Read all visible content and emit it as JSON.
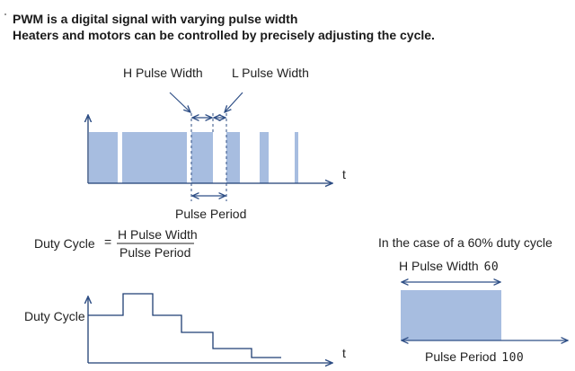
{
  "header": {
    "line1": "PWM is a digital signal with varying pulse width",
    "line2": "Heaters and motors can be controlled by precisely adjusting the cycle."
  },
  "pwm_diagram": {
    "h_label": "H Pulse Width",
    "l_label": "L Pulse Width",
    "period_label": "Pulse Period",
    "t_label": "t"
  },
  "formula": {
    "lhs": "Duty Cycle",
    "eq": "=",
    "numerator": "H Pulse Width",
    "denominator": "Pulse Period"
  },
  "example": {
    "title": "In the case of a 60% duty cycle",
    "h_label": "H Pulse Width",
    "h_value": "60",
    "period_label": "Pulse Period",
    "period_value": "100"
  },
  "duty_graph": {
    "ylabel": "Duty Cycle",
    "t_label": "t"
  },
  "colors": {
    "pulse_fill": "#a7bde0",
    "axis": "#1f3f74",
    "arrow": "#2f4f86"
  }
}
